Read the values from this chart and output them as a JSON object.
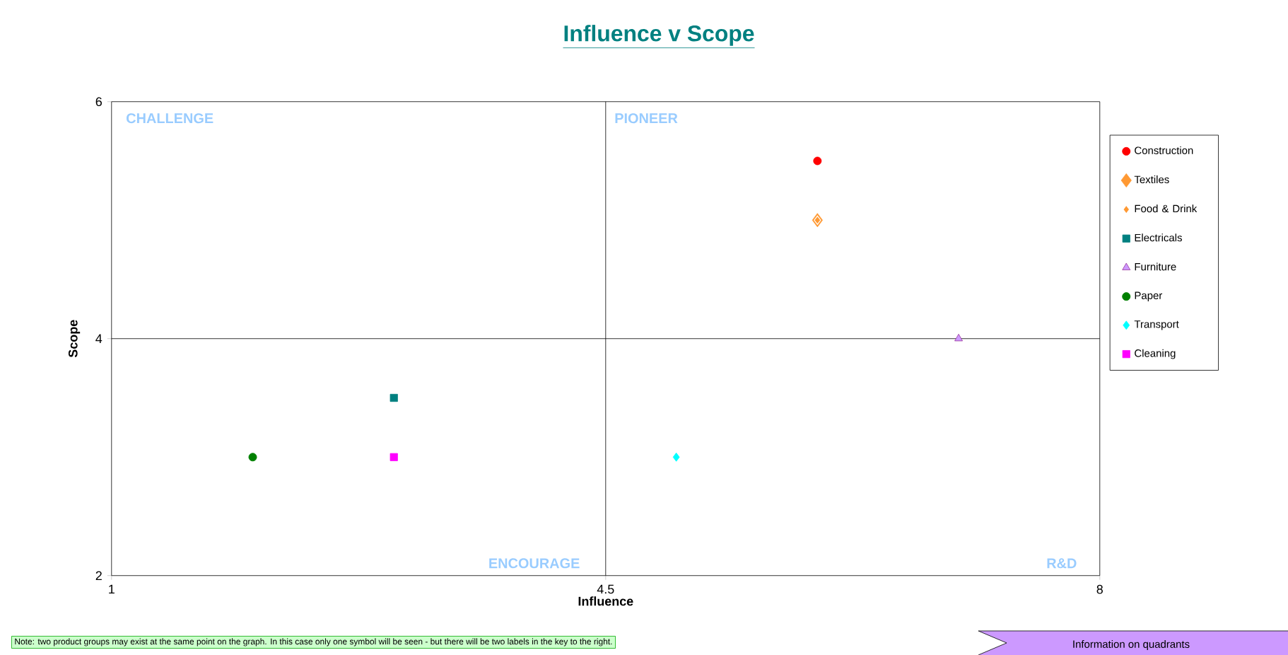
{
  "chart_data": {
    "type": "scatter",
    "title": "Influence v Scope",
    "xlabel": "Influence",
    "ylabel": "Scope",
    "xlim": [
      1,
      8
    ],
    "xticks": [
      1,
      4.5,
      8
    ],
    "ylim": [
      2,
      6
    ],
    "yticks": [
      2,
      4,
      6
    ],
    "grid": false,
    "legend": "right",
    "ref_lines": [
      {
        "axis": "x",
        "value": 4.5,
        "color": "#000000"
      },
      {
        "axis": "y",
        "value": 4,
        "color": "#000000"
      }
    ],
    "annotations": [
      "CHALLENGE",
      "PIONEER",
      "ENCOURAGE",
      "R&D",
      "Note: two product groups may exist at the same point on the graph. In this case only one symbol will be seen - but there will be two labels in the key to the right.",
      "Information on quadrants"
    ],
    "series": [
      {
        "name": "Construction",
        "color": "#ff0000",
        "marker": "circle",
        "x": [
          6
        ],
        "values": [
          5.5
        ]
      },
      {
        "name": "Textiles",
        "color": "#ff9933",
        "marker": "diamond",
        "x": [
          6
        ],
        "values": [
          5
        ]
      },
      {
        "name": "Food & Drink",
        "color": "#ff9933",
        "marker": "diamond",
        "x": [
          6
        ],
        "values": [
          5
        ]
      },
      {
        "name": "Electricals",
        "color": "#008080",
        "marker": "square",
        "x": [
          3
        ],
        "values": [
          3.5
        ]
      },
      {
        "name": "Furniture",
        "color": "#cc99ff",
        "marker": "triangle",
        "x": [
          7
        ],
        "values": [
          4
        ]
      },
      {
        "name": "Paper",
        "color": "#008000",
        "marker": "circle",
        "x": [
          2
        ],
        "values": [
          3
        ]
      },
      {
        "name": "Transport",
        "color": "#00ffff",
        "marker": "diamond",
        "x": [
          5
        ],
        "values": [
          3
        ]
      },
      {
        "name": "Cleaning",
        "color": "#ff00ff",
        "marker": "square",
        "x": [
          3
        ],
        "values": [
          3
        ]
      }
    ]
  }
}
